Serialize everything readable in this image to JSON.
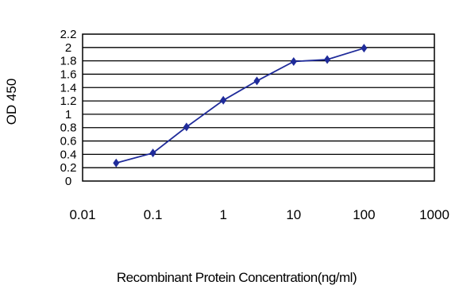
{
  "chart_data": {
    "type": "line",
    "title": "",
    "xlabel": "Recombinant Protein Concentration(ng/ml)",
    "ylabel": "OD 450",
    "x_scale": "log",
    "xlim": [
      0.01,
      1000
    ],
    "ylim": [
      0,
      2.2
    ],
    "x_ticks": [
      0.01,
      0.1,
      1,
      10,
      100,
      1000
    ],
    "x_tick_labels": [
      "0.01",
      "0.1",
      "1",
      "10",
      "100",
      "1000"
    ],
    "y_ticks": [
      0,
      0.2,
      0.4,
      0.6,
      0.8,
      1,
      1.2,
      1.4,
      1.6,
      1.8,
      2,
      2.2
    ],
    "y_tick_labels": [
      "0",
      "0.2",
      "0.4",
      "0.6",
      "0.8",
      "1",
      "1.2",
      "1.4",
      "1.6",
      "1.8",
      "2",
      "2.2"
    ],
    "grid": "horizontal",
    "legend": "none",
    "series": [
      {
        "color": "#1f2b9a",
        "marker": "diamond",
        "points": [
          {
            "x": 0.03,
            "y": 0.27
          },
          {
            "x": 0.1,
            "y": 0.42
          },
          {
            "x": 0.3,
            "y": 0.81
          },
          {
            "x": 1,
            "y": 1.21
          },
          {
            "x": 3,
            "y": 1.5
          },
          {
            "x": 10,
            "y": 1.79
          },
          {
            "x": 30,
            "y": 1.82
          },
          {
            "x": 100,
            "y": 1.99
          }
        ]
      }
    ]
  }
}
